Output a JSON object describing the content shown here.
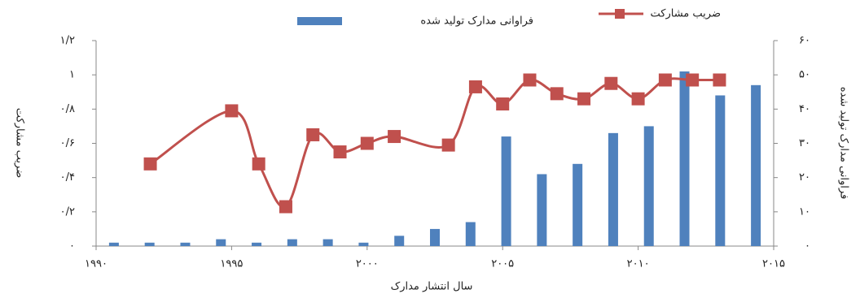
{
  "chart_data": {
    "type": "combo",
    "x_label": "سال انتشار مدارک",
    "y_label": "ضریب مشارکت",
    "y2_label": "فراوانی مدارک تولید شده",
    "legend": "top",
    "grid": false,
    "xlim": [
      1990,
      2015
    ],
    "xticks": [
      {
        "value": 1990,
        "label": "۱۹۹۰"
      },
      {
        "value": 1995,
        "label": "۱۹۹۵"
      },
      {
        "value": 2000,
        "label": "۲۰۰۰"
      },
      {
        "value": 2005,
        "label": "۲۰۰۵"
      },
      {
        "value": 2010,
        "label": "۲۰۱۰"
      },
      {
        "value": 2015,
        "label": "۲۰۱۵"
      }
    ],
    "ylim": [
      0,
      1.2
    ],
    "yticks": [
      {
        "value": 0,
        "label": "۰"
      },
      {
        "value": 0.2,
        "label": "۰/۲"
      },
      {
        "value": 0.4,
        "label": "۰/۴"
      },
      {
        "value": 0.6,
        "label": "۰/۶"
      },
      {
        "value": 0.8,
        "label": "۰/۸"
      },
      {
        "value": 1,
        "label": "۱"
      },
      {
        "value": 1.2,
        "label": "۱/۲"
      }
    ],
    "y2lim": [
      0,
      60
    ],
    "y2ticks": [
      {
        "value": 0,
        "label": "۰"
      },
      {
        "value": 10,
        "label": "۱۰"
      },
      {
        "value": 20,
        "label": "۲۰"
      },
      {
        "value": 30,
        "label": "۳۰"
      },
      {
        "value": 40,
        "label": "۴۰"
      },
      {
        "value": 50,
        "label": "۵۰"
      },
      {
        "value": 60,
        "label": "۶۰"
      }
    ],
    "series": [
      {
        "name": "فراوانی مدارک تولید شده",
        "type": "bar",
        "axis": "y2",
        "color": "#4f81bd",
        "values": [
          1,
          1,
          1,
          2,
          1,
          2,
          2,
          1,
          3,
          5,
          7,
          32,
          21,
          24,
          33,
          35,
          51,
          44,
          47
        ]
      },
      {
        "name": "ضریب مشارکت",
        "type": "line",
        "color": "#c0504d",
        "x": [
          1992,
          1995,
          1996,
          1997,
          1998,
          1999,
          2000,
          2001,
          2003,
          2004,
          2005,
          2006,
          2007,
          2008,
          2009,
          2010,
          2011,
          2012,
          2013
        ],
        "values": [
          0.48,
          0.79,
          0.48,
          0.23,
          0.65,
          0.55,
          0.6,
          0.64,
          0.59,
          0.93,
          0.83,
          0.97,
          0.89,
          0.86,
          0.95,
          0.86,
          0.97,
          0.97,
          0.97
        ]
      }
    ]
  }
}
